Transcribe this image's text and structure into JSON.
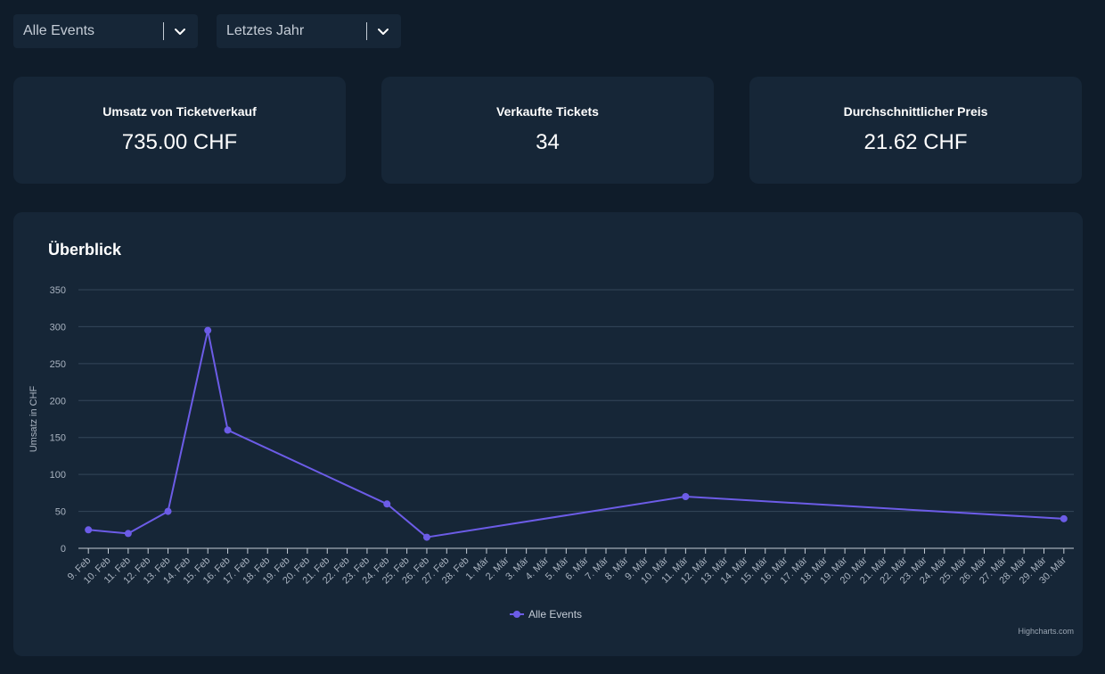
{
  "filters": {
    "event": {
      "label": "Alle Events",
      "icon": "chevron-down-icon"
    },
    "period": {
      "label": "Letztes Jahr",
      "icon": "chevron-down-icon"
    }
  },
  "cards": [
    {
      "title": "Umsatz von Ticketverkauf",
      "value": "735.00 CHF"
    },
    {
      "title": "Verkaufte Tickets",
      "value": "34"
    },
    {
      "title": "Durchschnittlicher Preis",
      "value": "21.62 CHF"
    }
  ],
  "panel": {
    "title": "Überblick"
  },
  "colors": {
    "series": "#6c5ce7",
    "grid": "#34465a",
    "text": "#a9b3c0"
  },
  "credits": "Highcharts.com",
  "chart_data": {
    "type": "line",
    "title": "Überblick",
    "xlabel": "",
    "ylabel": "Umsatz in CHF",
    "ylim": [
      0,
      350
    ],
    "yticks": [
      0,
      50,
      100,
      150,
      200,
      250,
      300,
      350
    ],
    "grid": true,
    "legend": "bottom-center",
    "categories": [
      "9. Feb",
      "10. Feb",
      "11. Feb",
      "12. Feb",
      "13. Feb",
      "14. Feb",
      "15. Feb",
      "16. Feb",
      "17. Feb",
      "18. Feb",
      "19. Feb",
      "20. Feb",
      "21. Feb",
      "22. Feb",
      "23. Feb",
      "24. Feb",
      "25. Feb",
      "26. Feb",
      "27. Feb",
      "28. Feb",
      "1. Mär",
      "2. Mär",
      "3. Mär",
      "4. Mär",
      "5. Mär",
      "6. Mär",
      "7. Mär",
      "8. Mär",
      "9. Mär",
      "10. Mär",
      "11. Mär",
      "12. Mär",
      "13. Mär",
      "14. Mär",
      "15. Mär",
      "16. Mär",
      "17. Mär",
      "18. Mär",
      "19. Mär",
      "20. Mär",
      "21. Mär",
      "22. Mär",
      "23. Mär",
      "24. Mär",
      "25. Mär",
      "26. Mär",
      "27. Mär",
      "28. Mär",
      "29. Mär",
      "30. Mär"
    ],
    "series": [
      {
        "name": "Alle Events",
        "points": [
          {
            "x": "9. Feb",
            "y": 25
          },
          {
            "x": "11. Feb",
            "y": 20
          },
          {
            "x": "13. Feb",
            "y": 50
          },
          {
            "x": "15. Feb",
            "y": 295
          },
          {
            "x": "16. Feb",
            "y": 160
          },
          {
            "x": "24. Feb",
            "y": 60
          },
          {
            "x": "26. Feb",
            "y": 15
          },
          {
            "x": "11. Mär",
            "y": 70
          },
          {
            "x": "30. Mär",
            "y": 40
          }
        ]
      }
    ]
  }
}
